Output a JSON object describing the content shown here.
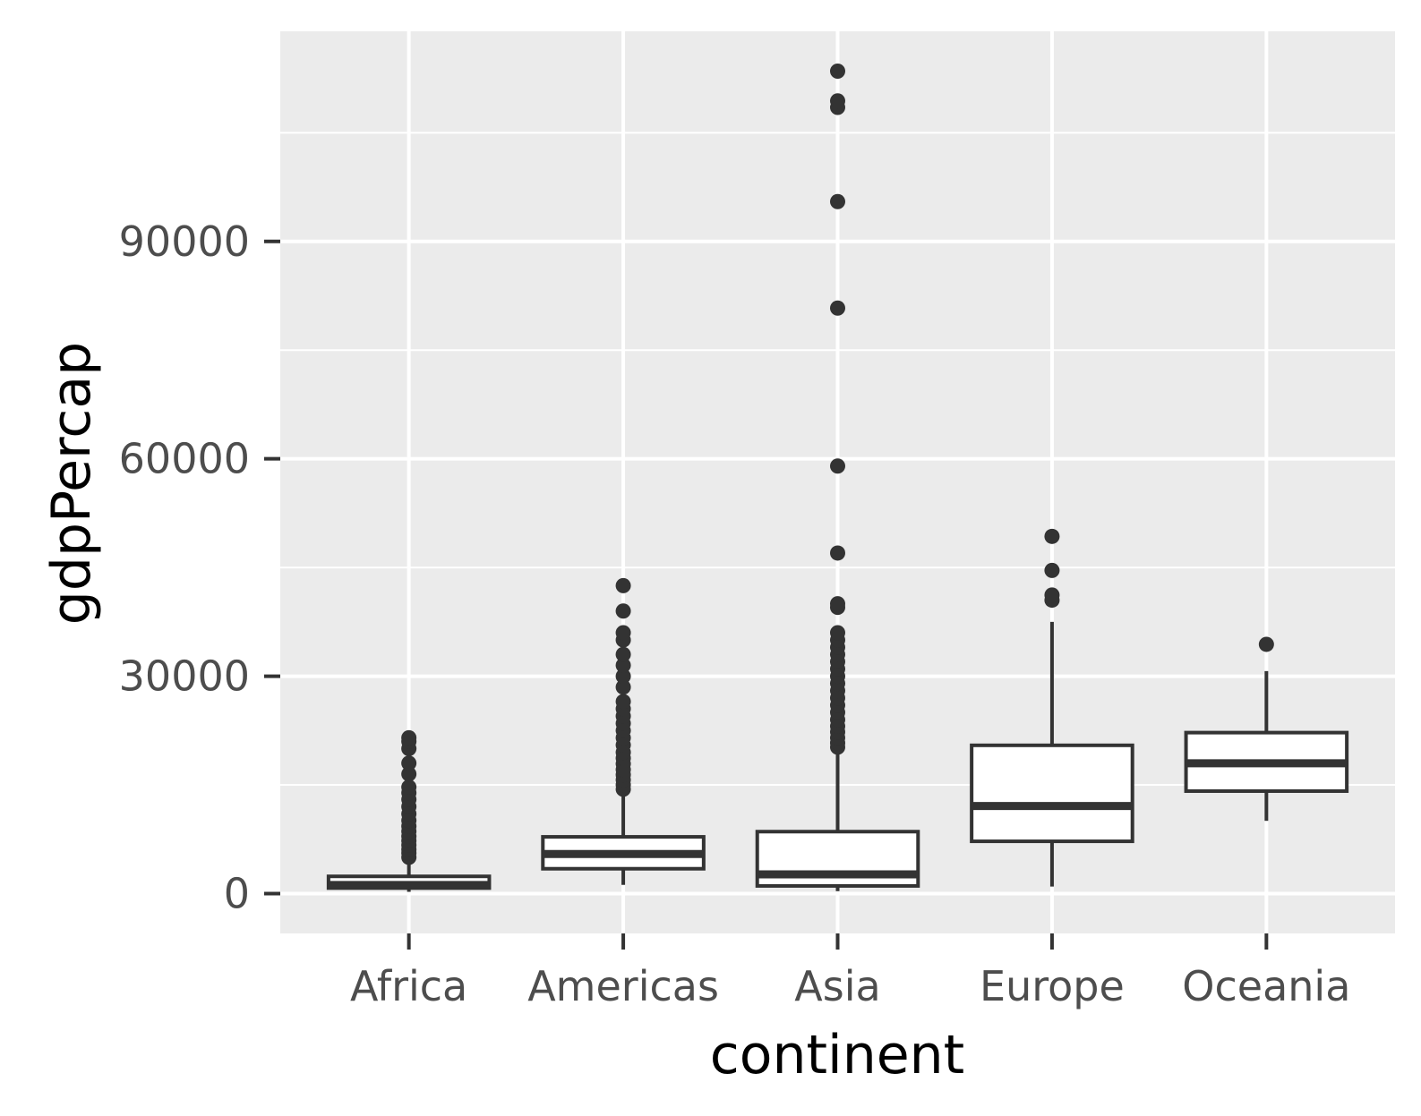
{
  "chart_data": {
    "type": "box",
    "xlabel": "continent",
    "ylabel": "gdpPercap",
    "categories": [
      "Africa",
      "Americas",
      "Asia",
      "Europe",
      "Oceania"
    ],
    "ylim": [
      -5500,
      119000
    ],
    "yticks": [
      0,
      30000,
      60000,
      90000
    ],
    "ytick_labels": [
      "0",
      "30000",
      "60000",
      "90000"
    ],
    "grid": true,
    "colors": {
      "panel": "#ebebeb",
      "grid": "#ffffff",
      "line": "#333333",
      "box_fill": "#ffffff"
    },
    "boxes": [
      {
        "category": "Africa",
        "whisker_low": 241,
        "q1": 761,
        "median": 1192,
        "q3": 2377,
        "whisker_high": 4800,
        "outliers": [
          5000,
          5600,
          6100,
          6700,
          7300,
          7900,
          8600,
          9300,
          10100,
          11000,
          12000,
          13000,
          13900,
          14700,
          16500,
          18000,
          20000,
          21000,
          21500
        ]
      },
      {
        "category": "Americas",
        "whisker_low": 1201,
        "q1": 3427,
        "median": 5466,
        "q3": 7830,
        "whisker_high": 13800,
        "outliers": [
          14400,
          15000,
          15700,
          16400,
          17100,
          17900,
          18700,
          19500,
          20500,
          21500,
          22500,
          23500,
          24500,
          25500,
          26500,
          28500,
          30000,
          31500,
          33000,
          35000,
          36000,
          39000,
          42500
        ]
      },
      {
        "category": "Asia",
        "whisker_low": 331,
        "q1": 1057,
        "median": 2647,
        "q3": 8549,
        "whisker_high": 19800,
        "outliers": [
          20200,
          20800,
          21500,
          22300,
          23100,
          24000,
          25000,
          26000,
          27000,
          28000,
          29000,
          30000,
          31000,
          32000,
          33000,
          34000,
          35000,
          36000,
          39500,
          40000,
          47000,
          59000,
          80800,
          95500,
          108500,
          109400,
          113500
        ]
      },
      {
        "category": "Europe",
        "whisker_low": 973,
        "q1": 7213,
        "median": 12082,
        "q3": 20461,
        "whisker_high": 37500,
        "outliers": [
          40500,
          41200,
          44600,
          49300
        ]
      },
      {
        "category": "Oceania",
        "whisker_low": 10040,
        "q1": 14142,
        "median": 17983,
        "q3": 22214,
        "whisker_high": 30700,
        "outliers": [
          34400
        ]
      }
    ]
  }
}
